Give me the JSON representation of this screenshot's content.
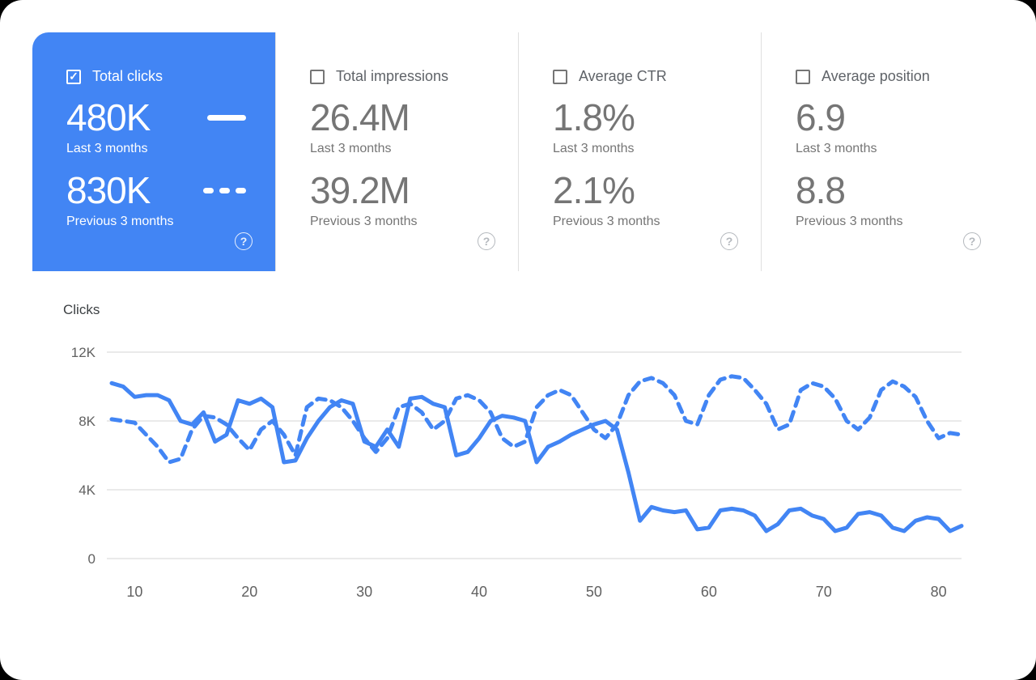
{
  "icons": {
    "check": "✓",
    "help": "?"
  },
  "colors": {
    "accent": "#4285f4",
    "selected_card_bg": "#4285f4",
    "line": "#4285f4",
    "muted_text": "#757575"
  },
  "cards": [
    {
      "label": "Total clicks",
      "checked": true,
      "value1": "480K",
      "caption1": "Last 3 months",
      "value2": "830K",
      "caption2": "Previous 3 months"
    },
    {
      "label": "Total impressions",
      "checked": false,
      "value1": "26.4M",
      "caption1": "Last 3 months",
      "value2": "39.2M",
      "caption2": "Previous 3 months"
    },
    {
      "label": "Average CTR",
      "checked": false,
      "value1": "1.8%",
      "caption1": "Last 3 months",
      "value2": "2.1%",
      "caption2": "Previous 3 months"
    },
    {
      "label": "Average position",
      "checked": false,
      "value1": "6.9",
      "caption1": "Last 3 months",
      "value2": "8.8",
      "caption2": "Previous 3 months"
    }
  ],
  "chart_data": {
    "type": "line",
    "title": "Clicks",
    "ylabel": "Clicks",
    "ylim": [
      0,
      12000
    ],
    "grid": true,
    "legend_position": "in-cards",
    "x_start": 8,
    "x_range": [
      8,
      82
    ],
    "xticks": [
      10,
      20,
      30,
      40,
      50,
      60,
      70,
      80
    ],
    "ygrid": [
      {
        "value": 12000,
        "label": "12K"
      },
      {
        "value": 8000,
        "label": "8K"
      },
      {
        "value": 4000,
        "label": "4K"
      },
      {
        "value": 0,
        "label": "0"
      }
    ],
    "series": [
      {
        "name": "Last 3 months",
        "style": "solid",
        "color": "#4285f4",
        "values": [
          10200,
          10000,
          9400,
          9500,
          9500,
          9200,
          8000,
          7800,
          8500,
          6800,
          7200,
          9200,
          9000,
          9300,
          8800,
          5600,
          5700,
          7000,
          8000,
          8800,
          9200,
          9000,
          6800,
          6500,
          7500,
          6500,
          9300,
          9400,
          9000,
          8800,
          6000,
          6200,
          7000,
          8000,
          8300,
          8200,
          8000,
          5600,
          6500,
          6800,
          7200,
          7500,
          7800,
          8000,
          7500,
          5000,
          2200,
          3000,
          2800,
          2700,
          2800,
          1700,
          1800,
          2800,
          2900,
          2800,
          2500,
          1600,
          2000,
          2800,
          2900,
          2500,
          2300,
          1600,
          1800,
          2600,
          2700,
          2500,
          1800,
          1600,
          2200,
          2400,
          2300,
          1600,
          1900
        ]
      },
      {
        "name": "Previous 3 months",
        "style": "dashed",
        "color": "#4285f4",
        "values": [
          8100,
          8000,
          7900,
          7200,
          6500,
          5600,
          5800,
          7500,
          8300,
          8200,
          7800,
          7000,
          6300,
          7500,
          8000,
          7200,
          6000,
          8800,
          9300,
          9200,
          8800,
          8000,
          7000,
          6200,
          7000,
          8800,
          9000,
          8500,
          7500,
          8000,
          9300,
          9500,
          9200,
          8500,
          7000,
          6500,
          6800,
          8800,
          9500,
          9800,
          9500,
          8500,
          7500,
          7000,
          7800,
          9500,
          10300,
          10500,
          10200,
          9500,
          8000,
          7800,
          9500,
          10400,
          10600,
          10500,
          9800,
          9000,
          7500,
          7800,
          9800,
          10200,
          10000,
          9300,
          8000,
          7500,
          8200,
          9800,
          10300,
          10000,
          9400,
          8000,
          7000,
          7300,
          7200
        ]
      }
    ]
  }
}
